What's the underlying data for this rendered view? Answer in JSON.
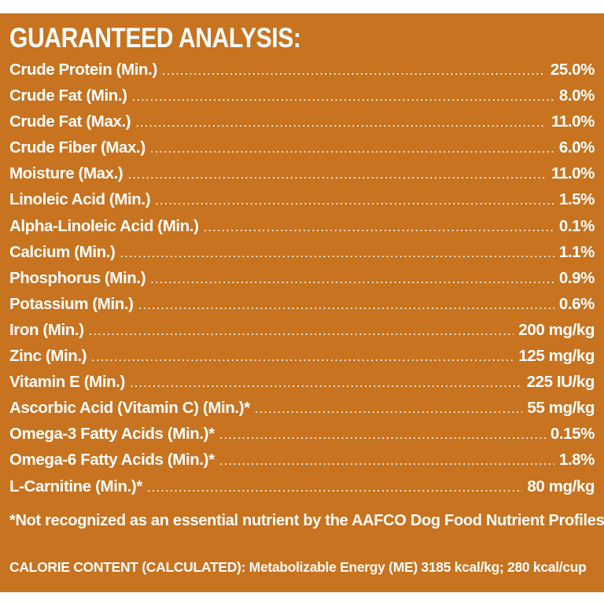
{
  "title": "GUARANTEED ANALYSIS:",
  "analysis": [
    {
      "label": "Crude Protein (Min.)",
      "value": "25.0%"
    },
    {
      "label": "Crude Fat (Min.)",
      "value": "8.0%"
    },
    {
      "label": "Crude Fat (Max.)",
      "value": "11.0%"
    },
    {
      "label": "Crude Fiber (Max.)",
      "value": "6.0%"
    },
    {
      "label": "Moisture (Max.)",
      "value": "11.0%"
    },
    {
      "label": "Linoleic Acid (Min.)",
      "value": "1.5%"
    },
    {
      "label": "Alpha-Linoleic Acid (Min.)",
      "value": "0.1%"
    },
    {
      "label": "Calcium (Min.)",
      "value": "1.1%"
    },
    {
      "label": "Phosphorus (Min.)",
      "value": "0.9%"
    },
    {
      "label": "Potassium (Min.)",
      "value": "0.6%"
    },
    {
      "label": "Iron (Min.)",
      "value": "200 mg/kg"
    },
    {
      "label": "Zinc (Min.)",
      "value": "125 mg/kg"
    },
    {
      "label": "Vitamin E (Min.)",
      "value": "225 IU/kg"
    },
    {
      "label": "Ascorbic Acid (Vitamin C) (Min.)*",
      "value": "55 mg/kg"
    },
    {
      "label": "Omega-3 Fatty Acids (Min.)*",
      "value": "0.15%"
    },
    {
      "label": "Omega-6 Fatty Acids (Min.)*",
      "value": "1.8%"
    },
    {
      "label": "L-Carnitine (Min.)*",
      "value": "80 mg/kg"
    }
  ],
  "footnote": "*Not recognized as an essential nutrient by the AAFCO Dog Food Nutrient Profiles",
  "calorie_content": "CALORIE CONTENT (CALCULATED): Metabolizable Energy (ME) 3185 kcal/kg; 280 kcal/cup",
  "colors": {
    "background": "#c8731f",
    "text": "#ffffff"
  }
}
